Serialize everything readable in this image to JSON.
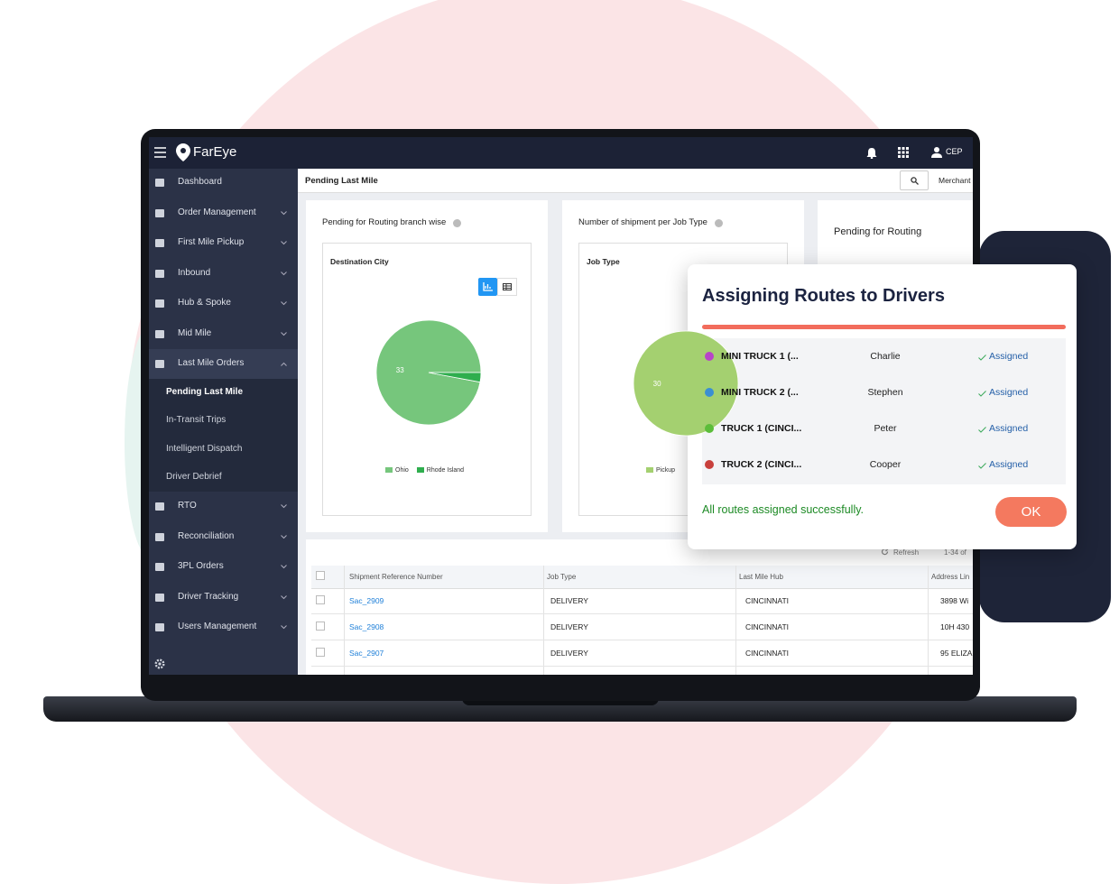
{
  "header": {
    "logo": "FarEye",
    "user": "CEP"
  },
  "sidebar": {
    "items": [
      "Dashboard",
      "Order Management",
      "First Mile Pickup",
      "Inbound",
      "Hub & Spoke",
      "Mid Mile",
      "Last Mile Orders"
    ],
    "submenu": [
      "Pending Last Mile",
      "In-Transit Trips",
      "Intelligent Dispatch",
      "Driver Debrief"
    ],
    "items_after": [
      "RTO",
      "Reconciliation",
      "3PL Orders",
      "Driver Tracking",
      "Users Management"
    ]
  },
  "page": {
    "title": "Pending Last Mile",
    "filter": "Merchant"
  },
  "cards": [
    {
      "title": "Pending for Routing branch wise",
      "chart_data": {
        "type": "pie",
        "title": "Destination City",
        "categories": [
          "Ohio",
          "Rhode Island"
        ],
        "values": [
          33,
          1
        ],
        "colors": [
          "#76c67c",
          "#2fae4e"
        ]
      }
    },
    {
      "title": "Number of shipment per Job Type",
      "chart_data": {
        "type": "pie",
        "title": "Job Type",
        "categories": [
          "Pickup"
        ],
        "values": [
          30
        ],
        "colors": [
          "#a4d070"
        ]
      }
    },
    {
      "title": "Pending for Routing"
    }
  ],
  "table": {
    "refresh": "Refresh",
    "range": "1-34 of",
    "headers": [
      "Shipment Reference Number",
      "Job Type",
      "Last Mile Hub",
      "Address Lin"
    ],
    "rows": [
      [
        "Sac_2909",
        "DELIVERY",
        "CINCINNATI",
        "3898 Wi"
      ],
      [
        "Sac_2908",
        "DELIVERY",
        "CINCINNATI",
        "10H 430"
      ],
      [
        "Sac_2907",
        "DELIVERY",
        "CINCINNATI",
        "95 ELIZA"
      ]
    ]
  },
  "dialog": {
    "title": "Assigning Routes to Drivers",
    "rows": [
      {
        "vehicle": "MINI TRUCK 1 (...",
        "driver": "Charlie",
        "status": "Assigned",
        "color": "#b845c8"
      },
      {
        "vehicle": "MINI TRUCK 2 (...",
        "driver": "Stephen",
        "status": "Assigned",
        "color": "#3b8fd2"
      },
      {
        "vehicle": "TRUCK 1 (CINCI...",
        "driver": "Peter",
        "status": "Assigned",
        "color": "#5cbd3a"
      },
      {
        "vehicle": "TRUCK 2 (CINCI...",
        "driver": "Cooper",
        "status": "Assigned",
        "color": "#c8403c"
      }
    ],
    "message": "All routes assigned successfully.",
    "button": "OK"
  }
}
